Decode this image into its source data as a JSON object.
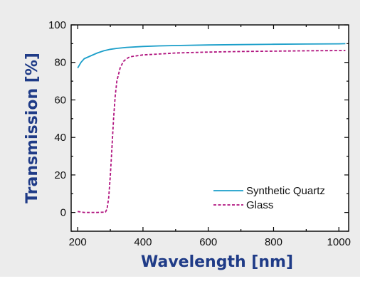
{
  "chart_data": {
    "type": "line",
    "title": "",
    "xlabel": "Wavelength [nm]",
    "ylabel": "Transmission [%]",
    "xlim": [
      180,
      1030
    ],
    "ylim": [
      -10,
      100
    ],
    "xticks": [
      200,
      400,
      600,
      800,
      1000
    ],
    "yticks": [
      0,
      20,
      40,
      60,
      80,
      100
    ],
    "grid": false,
    "legend_position": "lower-right",
    "axis_title_color": "#1f3b87",
    "series": [
      {
        "name": "Synthetic Quartz",
        "color": "#1a9ec9",
        "style": "solid",
        "x": [
          200,
          210,
          220,
          240,
          260,
          280,
          300,
          320,
          350,
          400,
          450,
          500,
          600,
          700,
          800,
          900,
          1000,
          1020
        ],
        "y": [
          77,
          80,
          82,
          83.5,
          85,
          86.2,
          87,
          87.5,
          88,
          88.5,
          88.8,
          89,
          89.3,
          89.5,
          89.7,
          89.8,
          89.9,
          90
        ]
      },
      {
        "name": "Glass",
        "color": "#b0127e",
        "style": "dashed",
        "x": [
          200,
          220,
          260,
          285,
          290,
          295,
          300,
          305,
          310,
          315,
          320,
          330,
          340,
          350,
          360,
          380,
          400,
          450,
          500,
          600,
          700,
          800,
          900,
          1000,
          1020
        ],
        "y": [
          0.5,
          0,
          0,
          0.2,
          2,
          8,
          20,
          35,
          50,
          62,
          70,
          77,
          80.5,
          82,
          83,
          83.5,
          84,
          84.5,
          85,
          85.5,
          85.8,
          86,
          86.2,
          86.3,
          86.4
        ]
      }
    ]
  }
}
